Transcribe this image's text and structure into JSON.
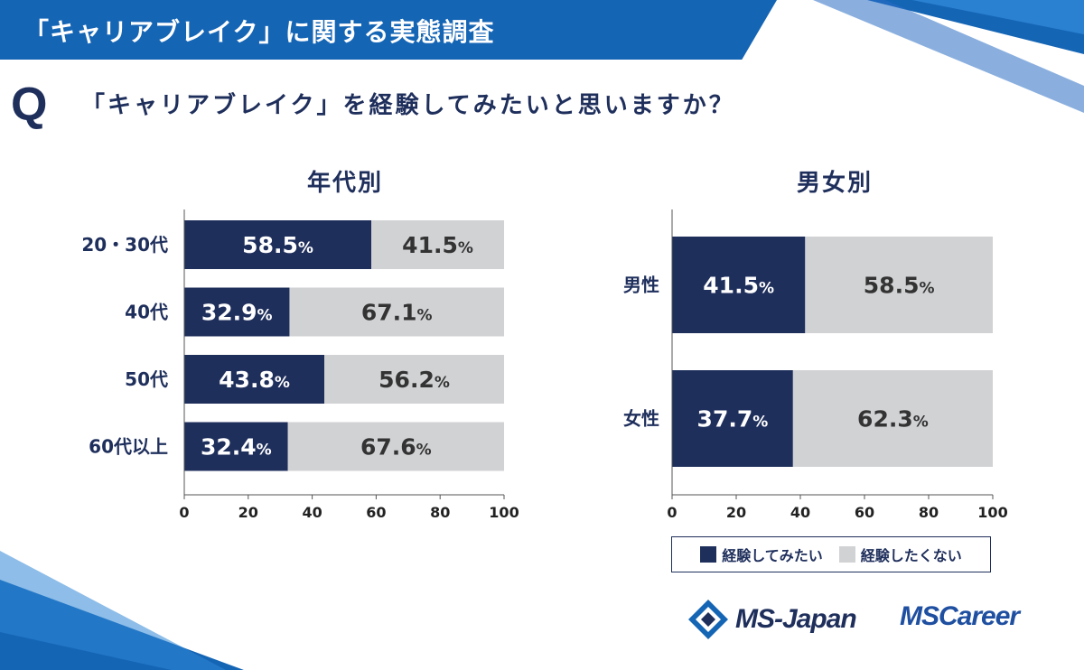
{
  "header": {
    "title": "「キャリアブレイク」に関する実態調査"
  },
  "question": {
    "letter": "Q",
    "text": "「キャリアブレイク」を経験してみたいと思いますか？"
  },
  "colors": {
    "yes": "#1f2f5c",
    "no": "#d1d2d4",
    "accent": "#1565b5",
    "text": "#1f2f5c"
  },
  "legend": {
    "yes_label": "経験してみたい",
    "no_label": "経験したくない"
  },
  "logos": {
    "ms_japan": "MS-Japan",
    "ms_career": "MSCareer"
  },
  "chart_data": [
    {
      "type": "bar",
      "orientation": "horizontal",
      "stacked": true,
      "title": "年代別",
      "categories": [
        "20・30代",
        "40代",
        "50代",
        "60代以上"
      ],
      "series": [
        {
          "name": "経験してみたい",
          "values": [
            58.5,
            32.9,
            43.8,
            32.4
          ],
          "labels": [
            "58.5",
            "32.9",
            "43.8",
            "32.4"
          ]
        },
        {
          "name": "経験したくない",
          "values": [
            41.5,
            67.1,
            56.2,
            67.6
          ],
          "labels": [
            "41.5",
            "67.1",
            "56.2",
            "67.6"
          ]
        }
      ],
      "unit": "%",
      "xlim": [
        0,
        100
      ],
      "xticks": [
        0,
        20,
        40,
        60,
        80,
        100
      ]
    },
    {
      "type": "bar",
      "orientation": "horizontal",
      "stacked": true,
      "title": "男女別",
      "categories": [
        "男性",
        "女性"
      ],
      "series": [
        {
          "name": "経験してみたい",
          "values": [
            41.5,
            37.7
          ],
          "labels": [
            "41.5",
            "37.7"
          ]
        },
        {
          "name": "経験したくない",
          "values": [
            58.5,
            62.3
          ],
          "labels": [
            "58.5",
            "62.3"
          ]
        }
      ],
      "unit": "%",
      "xlim": [
        0,
        100
      ],
      "xticks": [
        0,
        20,
        40,
        60,
        80,
        100
      ]
    }
  ]
}
